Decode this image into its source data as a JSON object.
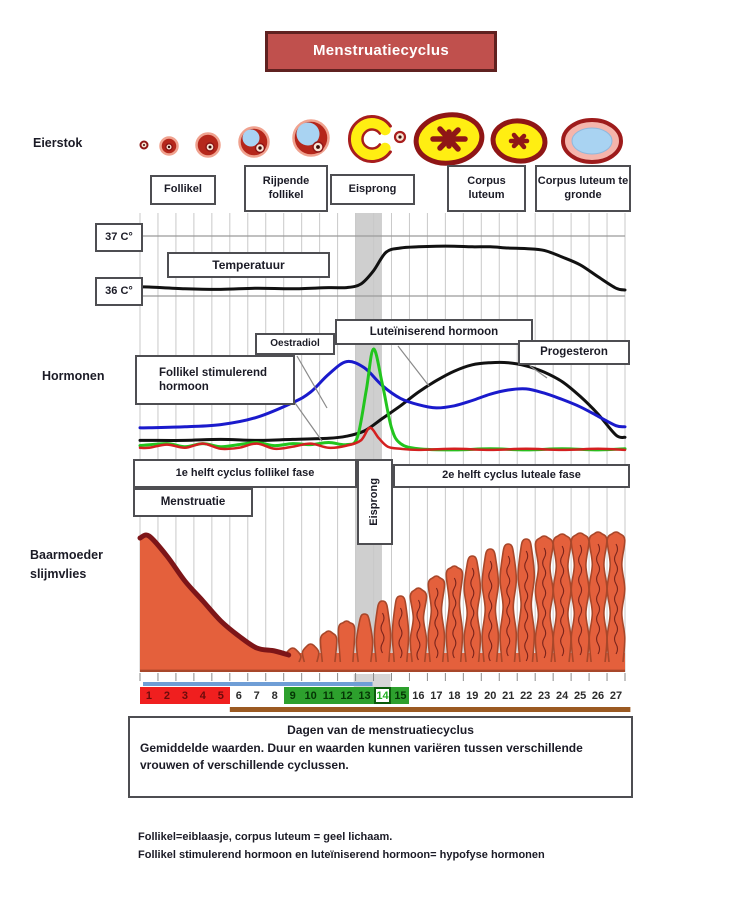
{
  "title": "Menstruatiecyclus",
  "section_labels": {
    "eierstok": "Eierstok",
    "hormonen": "Hormonen",
    "baarmoeder": "Baarmoeder slijmvlies"
  },
  "ovary_stages": [
    {
      "label": "Follikel"
    },
    {
      "label": "Rijpende follikel"
    },
    {
      "label": "Eisprong"
    },
    {
      "label": "Corpus luteum"
    },
    {
      "label": "Corpus luteum te gronde"
    }
  ],
  "temperature_axis": {
    "top": "37 C°",
    "bottom": "36 C°"
  },
  "curve_labels": {
    "temperatuur": "Temperatuur",
    "fsh": "Follikel stimulerend hormoon",
    "oestradiol": "Oestradiol",
    "lh": "Luteïniserend hormoon",
    "progesteron": "Progesteron"
  },
  "phase_labels": {
    "first_half": "1e helft cyclus follikel fase",
    "second_half": "2e helft cyclus luteale fase",
    "menstruatie": "Menstruatie",
    "eisprong": "Eisprong"
  },
  "day_axis": {
    "days": [
      1,
      2,
      3,
      4,
      5,
      6,
      7,
      8,
      9,
      10,
      11,
      12,
      13,
      14,
      15,
      16,
      17,
      18,
      19,
      20,
      21,
      22,
      23,
      24,
      25,
      26,
      27
    ],
    "menstruation_days": [
      1,
      5
    ],
    "fertile_days": [
      9,
      15
    ],
    "ovulation_day": 14,
    "timeline_bars": {
      "blue": [
        1,
        14
      ],
      "brown": [
        6,
        28.3
      ]
    }
  },
  "info_box": {
    "title": "Dagen van de menstruatiecyclus",
    "body": "Gemiddelde waarden. Duur en waarden kunnen variëren tussen verschillende vrouwen of verschillende cyclussen."
  },
  "footnotes": [
    "Follikel=eiblaasje, corpus luteum = geel lichaam.",
    "Follikel stimulerend hormoon en luteïniserend hormoon= hypofyse hormonen"
  ],
  "colors": {
    "title_bg": "#c0504d",
    "title_border": "#5f2120",
    "text_dark": "#1b1b26",
    "temperature": "#111111",
    "fsh": "#d42020",
    "oestradiol": "#1a1acc",
    "lh": "#22c51e",
    "progesteron": "#111111",
    "lining": "#e4603c",
    "lining_edge": "#a8472a",
    "menstruation_dark": "#7d1518",
    "day_red_bg": "#f01f1f",
    "day_green_bg": "#2da02d",
    "blue_bar": "#6f9ed6",
    "brown_bar": "#9b5a22",
    "band_gray": "#cfcfcf",
    "grid": "#c9c9c9",
    "grid_major": "#9a9a9a",
    "follicle_dark": "#8f1616",
    "follicle_fill": "#b5271b",
    "follicle_halo": "#f0a28f",
    "fluid_blue": "#a9d3f2",
    "yellow": "#ffee12",
    "pointer": "#8a8a8a"
  },
  "chart_data": [
    {
      "id": "temperature",
      "type": "line",
      "title": "Temperatuur",
      "x_range": [
        1,
        27
      ],
      "ylim": [
        35.85,
        37.35
      ],
      "yticks": [
        "37 C°",
        "36 C°"
      ],
      "grid": true,
      "series": [
        {
          "name": "Temperatuur",
          "color_key": "temperature",
          "points": [
            [
              0.5,
              36.15
            ],
            [
              1,
              36.15
            ],
            [
              3,
              36.12
            ],
            [
              5,
              36.11
            ],
            [
              7,
              36.13
            ],
            [
              9,
              36.12
            ],
            [
              11,
              36.14
            ],
            [
              12,
              36.14
            ],
            [
              12.8,
              36.2
            ],
            [
              13.5,
              36.42
            ],
            [
              14.2,
              36.73
            ],
            [
              15,
              36.8
            ],
            [
              16,
              36.82
            ],
            [
              17,
              36.83
            ],
            [
              18,
              36.83
            ],
            [
              19,
              36.82
            ],
            [
              20,
              36.82
            ],
            [
              21,
              36.8
            ],
            [
              22,
              36.79
            ],
            [
              23,
              36.76
            ],
            [
              24,
              36.65
            ],
            [
              25,
              36.52
            ],
            [
              26,
              36.32
            ],
            [
              27,
              36.13
            ],
            [
              27.5,
              36.1
            ]
          ]
        }
      ]
    },
    {
      "id": "hormones",
      "type": "line",
      "title": "Hormonen",
      "x_range": [
        1,
        27
      ],
      "ylim": [
        0,
        100
      ],
      "grid": true,
      "annotations": {
        "ovulation_band_days": [
          12.97,
          14.47
        ]
      },
      "series": [
        {
          "name": "Progesteron",
          "color_key": "progesteron",
          "points": [
            [
              0.5,
              12
            ],
            [
              1,
              12
            ],
            [
              3,
              12
            ],
            [
              5,
              13
            ],
            [
              7,
              12
            ],
            [
              9,
              13
            ],
            [
              11,
              14
            ],
            [
              12,
              16
            ],
            [
              13,
              21
            ],
            [
              14,
              33
            ],
            [
              15,
              45
            ],
            [
              16,
              58
            ],
            [
              17,
              69
            ],
            [
              18,
              78
            ],
            [
              19,
              84
            ],
            [
              20,
              86
            ],
            [
              21,
              86
            ],
            [
              22,
              83
            ],
            [
              23,
              77
            ],
            [
              24,
              68
            ],
            [
              25,
              54
            ],
            [
              26,
              37
            ],
            [
              27,
              17
            ],
            [
              27.5,
              15
            ]
          ]
        },
        {
          "name": "Oestradiol",
          "color_key": "oestradiol",
          "points": [
            [
              0.5,
              24
            ],
            [
              1,
              24
            ],
            [
              3,
              25
            ],
            [
              5,
              27
            ],
            [
              7,
              34
            ],
            [
              9,
              48
            ],
            [
              10,
              58
            ],
            [
              11,
              75
            ],
            [
              12,
              87
            ],
            [
              13,
              81
            ],
            [
              14,
              64
            ],
            [
              15,
              52
            ],
            [
              16,
              46
            ],
            [
              17,
              43
            ],
            [
              18,
              45
            ],
            [
              19,
              50
            ],
            [
              20,
              56
            ],
            [
              21,
              60
            ],
            [
              22,
              61
            ],
            [
              23,
              57
            ],
            [
              24,
              51
            ],
            [
              25,
              44
            ],
            [
              26,
              35
            ],
            [
              27,
              26
            ],
            [
              27.5,
              25
            ]
          ]
        },
        {
          "name": "Luteïniserend hormoon",
          "color_key": "lh",
          "points": [
            [
              0.5,
              7
            ],
            [
              2,
              9
            ],
            [
              3,
              6
            ],
            [
              4,
              9
            ],
            [
              5,
              6
            ],
            [
              6,
              8
            ],
            [
              7,
              10
            ],
            [
              8,
              7
            ],
            [
              9,
              9
            ],
            [
              10,
              8
            ],
            [
              11,
              10
            ],
            [
              12,
              8
            ],
            [
              12.6,
              15
            ],
            [
              13.1,
              60
            ],
            [
              13.5,
              99
            ],
            [
              14,
              65
            ],
            [
              14.5,
              24
            ],
            [
              15,
              9
            ],
            [
              16,
              4
            ],
            [
              18,
              3
            ],
            [
              20,
              4
            ],
            [
              22,
              3
            ],
            [
              24,
              4
            ],
            [
              26,
              3
            ],
            [
              27.5,
              4
            ]
          ]
        },
        {
          "name": "Follikel stimulerend hormoon",
          "color_key": "fsh",
          "points": [
            [
              0.5,
              5
            ],
            [
              1,
              5
            ],
            [
              2,
              8
            ],
            [
              3,
              5
            ],
            [
              4,
              9
            ],
            [
              5,
              4
            ],
            [
              6,
              5
            ],
            [
              7,
              9
            ],
            [
              8,
              4
            ],
            [
              9,
              6
            ],
            [
              10,
              9
            ],
            [
              11,
              5
            ],
            [
              12,
              7
            ],
            [
              12.8,
              12
            ],
            [
              13.3,
              24
            ],
            [
              13.8,
              14
            ],
            [
              14.3,
              6
            ],
            [
              15,
              4
            ],
            [
              16,
              3
            ],
            [
              18,
              4
            ],
            [
              20,
              3
            ],
            [
              22,
              4
            ],
            [
              24,
              3
            ],
            [
              26,
              4
            ],
            [
              27.5,
              3
            ]
          ]
        }
      ]
    },
    {
      "id": "endometrium",
      "type": "area",
      "title": "Baarmoeder slijmvlies",
      "x_range": [
        1,
        27
      ],
      "ylim": [
        0,
        140
      ],
      "unit": "relative thickness",
      "series": [
        {
          "name": "Baarmoeder slijmvlies",
          "color_key": "lining",
          "values": [
            135,
            115,
            90,
            70,
            50,
            35,
            23,
            20,
            23,
            27,
            40,
            50,
            57,
            70,
            75,
            83,
            95,
            105,
            115,
            122,
            127,
            132,
            135,
            137,
            138,
            139,
            139
          ]
        }
      ]
    }
  ]
}
